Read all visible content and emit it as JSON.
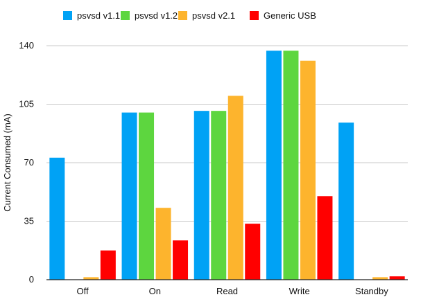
{
  "chart_data": {
    "type": "bar",
    "title": "",
    "xlabel": "",
    "ylabel": "Current Consumed (mA)",
    "categories": [
      "Off",
      "On",
      "Read",
      "Write",
      "Standby"
    ],
    "ylim": [
      0,
      140
    ],
    "yticks": [
      0,
      35,
      70,
      105,
      140
    ],
    "grid": true,
    "legend_position": "top",
    "series": [
      {
        "name": "psvsd v1.1",
        "color": "#00A2F5",
        "values": [
          73,
          100,
          101,
          137,
          94
        ]
      },
      {
        "name": "psvsd v1.2",
        "color": "#5DD63F",
        "values": [
          0,
          100,
          101,
          137,
          0
        ]
      },
      {
        "name": "psvsd v2.1",
        "color": "#FDB42D",
        "values": [
          1.5,
          43,
          110,
          131,
          1.5
        ]
      },
      {
        "name": "Generic USB",
        "color": "#FF0000",
        "values": [
          17.5,
          23.5,
          33.5,
          50,
          2
        ]
      }
    ]
  }
}
